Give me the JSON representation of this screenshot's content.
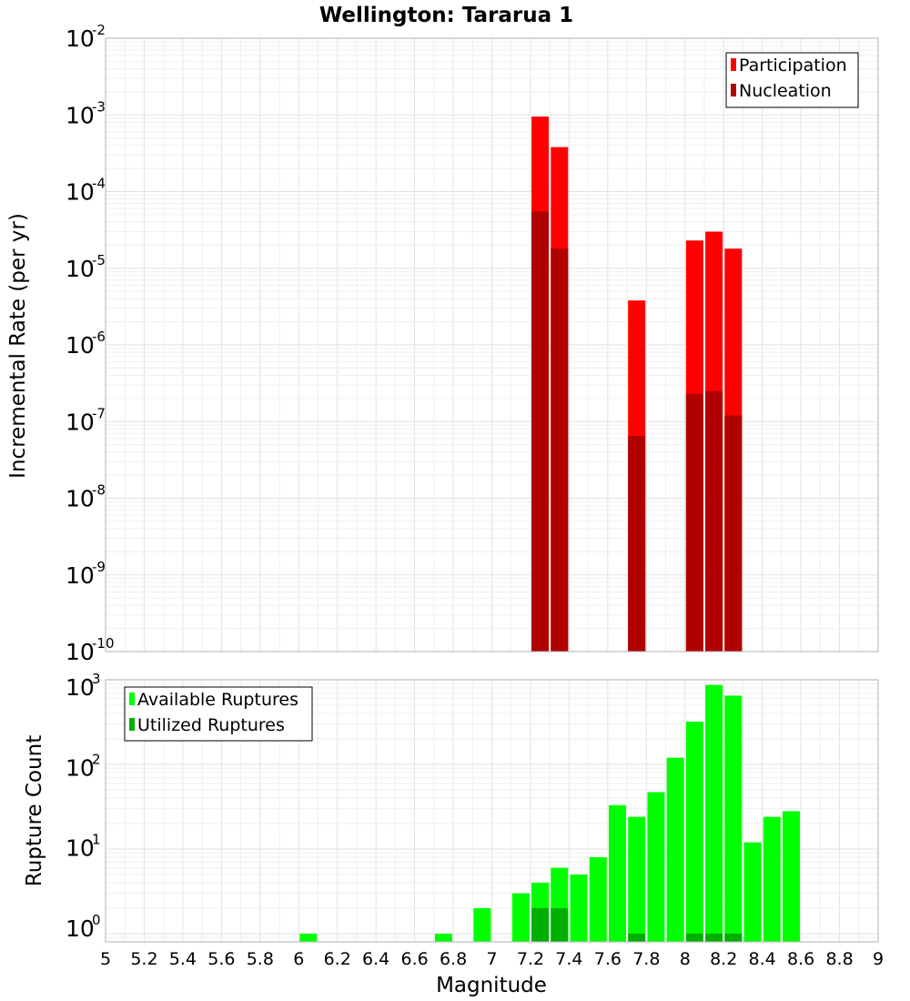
{
  "chart_data": [
    {
      "type": "bar",
      "title": "Wellington: Tararua 1",
      "ylabel": "Incremental Rate (per yr)",
      "yscale": "log",
      "ylim": [
        1e-10,
        0.01
      ],
      "xlim": [
        5,
        9
      ],
      "legend_position": "top-right",
      "grid": true,
      "series": [
        {
          "name": "Participation",
          "color": "#ff0000",
          "x": [
            7.25,
            7.35,
            7.75,
            8.05,
            8.15,
            8.25
          ],
          "values": [
            0.00095,
            0.00038,
            3.8e-06,
            2.3e-05,
            3e-05,
            1.8e-05
          ]
        },
        {
          "name": "Nucleation",
          "color": "#b00000",
          "x": [
            7.25,
            7.35,
            7.75,
            8.05,
            8.15,
            8.25
          ],
          "values": [
            5.5e-05,
            1.8e-05,
            6.5e-08,
            2.3e-07,
            2.5e-07,
            1.2e-07
          ]
        }
      ]
    },
    {
      "type": "bar",
      "xlabel": "Magnitude",
      "ylabel": "Rupture Count",
      "yscale": "log",
      "ylim": [
        0.8,
        1000
      ],
      "xlim": [
        5,
        9
      ],
      "legend_position": "top-left",
      "grid": true,
      "series": [
        {
          "name": "Available Ruptures",
          "color": "#00ff00",
          "x": [
            6.05,
            6.75,
            6.95,
            7.15,
            7.25,
            7.35,
            7.45,
            7.55,
            7.65,
            7.75,
            7.85,
            7.95,
            8.05,
            8.15,
            8.25,
            8.35,
            8.45,
            8.55
          ],
          "values": [
            1,
            1,
            2,
            3,
            4,
            6,
            5,
            8,
            33,
            24,
            47,
            120,
            320,
            870,
            650,
            12,
            24,
            28
          ]
        },
        {
          "name": "Utilized Ruptures",
          "color": "#00b000",
          "x": [
            7.25,
            7.35,
            7.75,
            8.05,
            8.15,
            8.25
          ],
          "values": [
            2,
            2,
            1,
            1,
            1,
            1
          ]
        }
      ]
    }
  ],
  "x_ticks": [
    "5",
    "5.2",
    "5.4",
    "5.6",
    "5.8",
    "6",
    "6.2",
    "6.4",
    "6.6",
    "6.8",
    "7",
    "7.2",
    "7.4",
    "7.6",
    "7.8",
    "8",
    "8.2",
    "8.4",
    "8.6",
    "8.8",
    "9"
  ],
  "top_y_ticks": [
    {
      "base": "10",
      "exp": "-2"
    },
    {
      "base": "10",
      "exp": "-3"
    },
    {
      "base": "10",
      "exp": "-4"
    },
    {
      "base": "10",
      "exp": "-5"
    },
    {
      "base": "10",
      "exp": "-6"
    },
    {
      "base": "10",
      "exp": "-7"
    },
    {
      "base": "10",
      "exp": "-8"
    },
    {
      "base": "10",
      "exp": "-9"
    },
    {
      "base": "10",
      "exp": "-10"
    }
  ],
  "bottom_y_ticks": [
    {
      "base": "10",
      "exp": "3"
    },
    {
      "base": "10",
      "exp": "2"
    },
    {
      "base": "10",
      "exp": "1"
    },
    {
      "base": "10",
      "exp": "0"
    }
  ]
}
